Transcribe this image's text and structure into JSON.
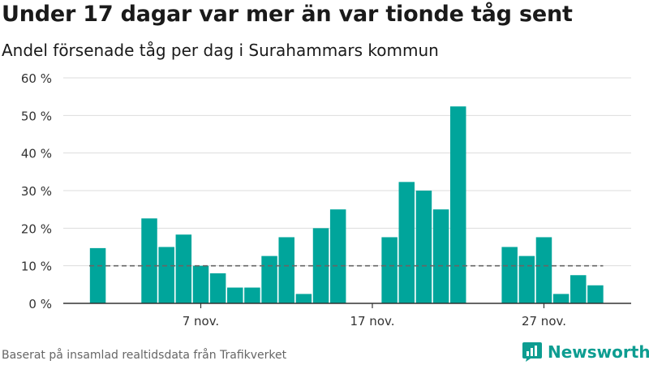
{
  "title": "Under 17 dagar var mer än var tionde tåg sent",
  "subtitle": "Andel försenade tåg per dag i Surahammars kommun",
  "source": "Baserat på insamlad realtidsdata från Trafikverket",
  "brand": {
    "name": "Newsworthy",
    "icon": "bar-chart-logo-icon"
  },
  "colors": {
    "bar": "#00a59b",
    "reference_line": "#666666",
    "grid": "#dddddd",
    "axis": "#333333",
    "brand": "#0d9d91"
  },
  "chart_data": {
    "type": "bar",
    "title": "Under 17 dagar var mer än var tionde tåg sent",
    "subtitle": "Andel försenade tåg per dag i Surahammars kommun",
    "xlabel": "",
    "ylabel": "",
    "x": [
      "1 nov.",
      "2 nov.",
      "3 nov.",
      "4 nov.",
      "5 nov.",
      "6 nov.",
      "7 nov.",
      "8 nov.",
      "9 nov.",
      "10 nov.",
      "11 nov.",
      "12 nov.",
      "13 nov.",
      "14 nov.",
      "15 nov.",
      "16 nov.",
      "17 nov.",
      "18 nov.",
      "19 nov.",
      "20 nov.",
      "21 nov.",
      "22 nov.",
      "23 nov.",
      "24 nov.",
      "25 nov.",
      "26 nov.",
      "27 nov.",
      "28 nov.",
      "29 nov.",
      "30 nov."
    ],
    "values": [
      14.7,
      null,
      null,
      22.6,
      15.0,
      18.3,
      10.0,
      8.0,
      4.2,
      4.2,
      12.6,
      17.6,
      2.5,
      20.0,
      25.0,
      null,
      null,
      17.6,
      32.3,
      30.0,
      25.0,
      52.4,
      null,
      null,
      15.0,
      12.6,
      17.6,
      2.5,
      7.5,
      4.8
    ],
    "ylim": [
      0,
      60
    ],
    "yticks": [
      0,
      10,
      20,
      30,
      40,
      50,
      60
    ],
    "ytick_labels": [
      "0 %",
      "10 %",
      "20 %",
      "30 %",
      "40 %",
      "50 %",
      "60 %"
    ],
    "xticks": [
      "7 nov.",
      "17 nov.",
      "27 nov."
    ],
    "reference_line": {
      "value": 10,
      "style": "dashed"
    },
    "grid": true,
    "legend": "none"
  }
}
